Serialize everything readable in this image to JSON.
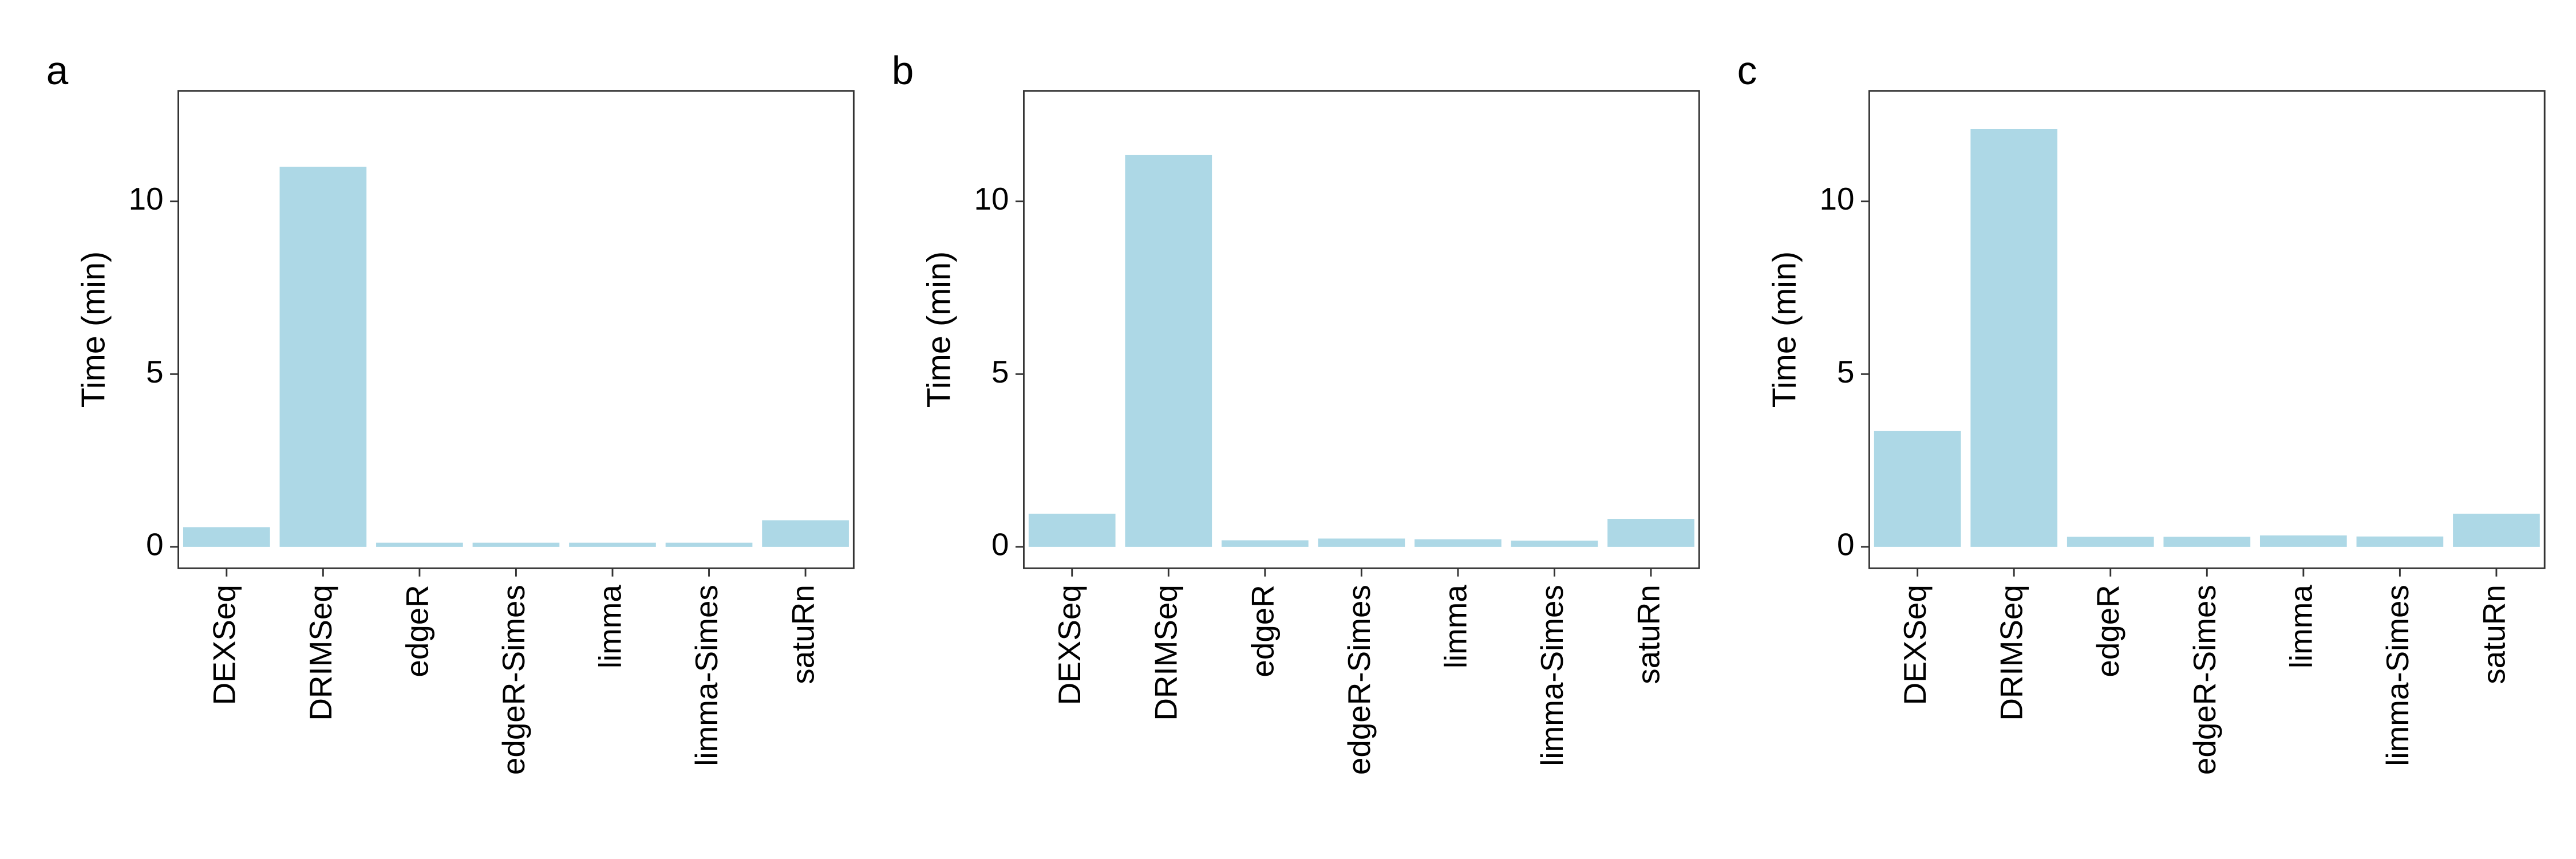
{
  "chart_data": [
    {
      "type": "bar",
      "title": "a",
      "ylabel": "Time (min)",
      "categories": [
        "DEXSeq",
        "DRIMSeq",
        "edgeR",
        "edgeR-Simes",
        "limma",
        "limma-Simes",
        "satuRn"
      ],
      "values": [
        0.57,
        11.0,
        0.12,
        0.12,
        0.12,
        0.12,
        0.77
      ],
      "color": "#add8e6",
      "ylim": [
        -0.62,
        13.2
      ],
      "yticks": [
        0,
        5,
        10
      ]
    },
    {
      "type": "bar",
      "title": "b",
      "ylabel": "Time (min)",
      "categories": [
        "DEXSeq",
        "DRIMSeq",
        "edgeR",
        "edgeR-Simes",
        "limma",
        "limma-Simes",
        "satuRn"
      ],
      "values": [
        0.96,
        11.34,
        0.19,
        0.24,
        0.22,
        0.18,
        0.81
      ],
      "color": "#add8e6",
      "ylim": [
        -0.62,
        13.2
      ],
      "yticks": [
        0,
        5,
        10
      ]
    },
    {
      "type": "bar",
      "title": "c",
      "ylabel": "Time (min)",
      "categories": [
        "DEXSeq",
        "DRIMSeq",
        "edgeR",
        "edgeR-Simes",
        "limma",
        "limma-Simes",
        "satuRn"
      ],
      "values": [
        3.35,
        12.1,
        0.29,
        0.29,
        0.33,
        0.3,
        0.96
      ],
      "color": "#add8e6",
      "ylim": [
        -0.62,
        13.2
      ],
      "yticks": [
        0,
        5,
        10
      ]
    }
  ]
}
